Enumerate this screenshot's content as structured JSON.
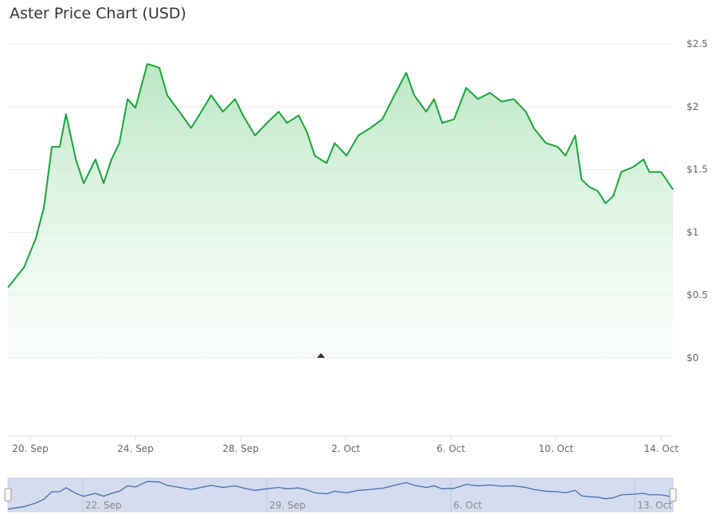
{
  "chart_data": {
    "type": "area",
    "title": "Aster Price Chart (USD)",
    "xlabel": "",
    "ylabel": "",
    "x_unit": "days since 20 Sep",
    "ylim": [
      0,
      2.5
    ],
    "y_ticks": [
      {
        "value": 0,
        "label": "$0"
      },
      {
        "value": 0.5,
        "label": "$0.5"
      },
      {
        "value": 1,
        "label": "$1"
      },
      {
        "value": 1.5,
        "label": "$1.5"
      },
      {
        "value": 2,
        "label": "$2"
      },
      {
        "value": 2.5,
        "label": "$2.5"
      }
    ],
    "x_ticks": [
      {
        "value": 0,
        "label": "20. Sep"
      },
      {
        "value": 4,
        "label": "24. Sep"
      },
      {
        "value": 8,
        "label": "28. Sep"
      },
      {
        "value": 12,
        "label": "2. Oct"
      },
      {
        "value": 16,
        "label": "6. Oct"
      },
      {
        "value": 20,
        "label": "10. Oct"
      },
      {
        "value": 24,
        "label": "14. Oct"
      }
    ],
    "navigator_ticks": [
      {
        "value": 2,
        "label": "22. Sep"
      },
      {
        "value": 9,
        "label": "29. Sep"
      },
      {
        "value": 16,
        "label": "6. Oct"
      },
      {
        "value": 23,
        "label": "13. Oct"
      }
    ],
    "xlim": [
      -0.85,
      24.45
    ],
    "grid": true,
    "legend": "none",
    "colors": {
      "line": "#1aa33a",
      "fill_top": "#b6e6c0",
      "navigator_line": "#4a68b0",
      "navigator_bg": "#d5dcef"
    },
    "series": [
      {
        "name": "Aster Price (USD)",
        "points": [
          [
            -0.85,
            0.56
          ],
          [
            -0.24,
            0.72
          ],
          [
            0.21,
            0.95
          ],
          [
            0.52,
            1.2
          ],
          [
            0.82,
            1.68
          ],
          [
            1.12,
            1.68
          ],
          [
            1.36,
            1.94
          ],
          [
            1.73,
            1.58
          ],
          [
            2.03,
            1.39
          ],
          [
            2.48,
            1.58
          ],
          [
            2.79,
            1.39
          ],
          [
            3.09,
            1.58
          ],
          [
            3.39,
            1.71
          ],
          [
            3.7,
            2.06
          ],
          [
            4.0,
            1.99
          ],
          [
            4.45,
            2.34
          ],
          [
            4.91,
            2.31
          ],
          [
            5.21,
            2.09
          ],
          [
            5.67,
            1.96
          ],
          [
            6.12,
            1.83
          ],
          [
            6.42,
            1.93
          ],
          [
            6.88,
            2.09
          ],
          [
            7.33,
            1.96
          ],
          [
            7.79,
            2.06
          ],
          [
            8.09,
            1.93
          ],
          [
            8.55,
            1.77
          ],
          [
            9.0,
            1.87
          ],
          [
            9.45,
            1.96
          ],
          [
            9.76,
            1.87
          ],
          [
            10.21,
            1.93
          ],
          [
            10.52,
            1.8
          ],
          [
            10.82,
            1.61
          ],
          [
            11.27,
            1.55
          ],
          [
            11.58,
            1.71
          ],
          [
            12.03,
            1.61
          ],
          [
            12.48,
            1.77
          ],
          [
            12.94,
            1.83
          ],
          [
            13.39,
            1.9
          ],
          [
            13.85,
            2.09
          ],
          [
            14.3,
            2.27
          ],
          [
            14.61,
            2.09
          ],
          [
            15.06,
            1.96
          ],
          [
            15.36,
            2.06
          ],
          [
            15.67,
            1.87
          ],
          [
            16.12,
            1.9
          ],
          [
            16.58,
            2.15
          ],
          [
            17.03,
            2.06
          ],
          [
            17.48,
            2.11
          ],
          [
            17.94,
            2.04
          ],
          [
            18.39,
            2.06
          ],
          [
            18.85,
            1.96
          ],
          [
            19.15,
            1.83
          ],
          [
            19.61,
            1.71
          ],
          [
            20.06,
            1.68
          ],
          [
            20.36,
            1.61
          ],
          [
            20.73,
            1.77
          ],
          [
            20.97,
            1.42
          ],
          [
            21.27,
            1.36
          ],
          [
            21.58,
            1.33
          ],
          [
            21.88,
            1.23
          ],
          [
            22.18,
            1.29
          ],
          [
            22.48,
            1.48
          ],
          [
            22.94,
            1.52
          ],
          [
            23.33,
            1.58
          ],
          [
            23.55,
            1.48
          ],
          [
            24.0,
            1.48
          ],
          [
            24.45,
            1.34
          ]
        ]
      }
    ]
  }
}
